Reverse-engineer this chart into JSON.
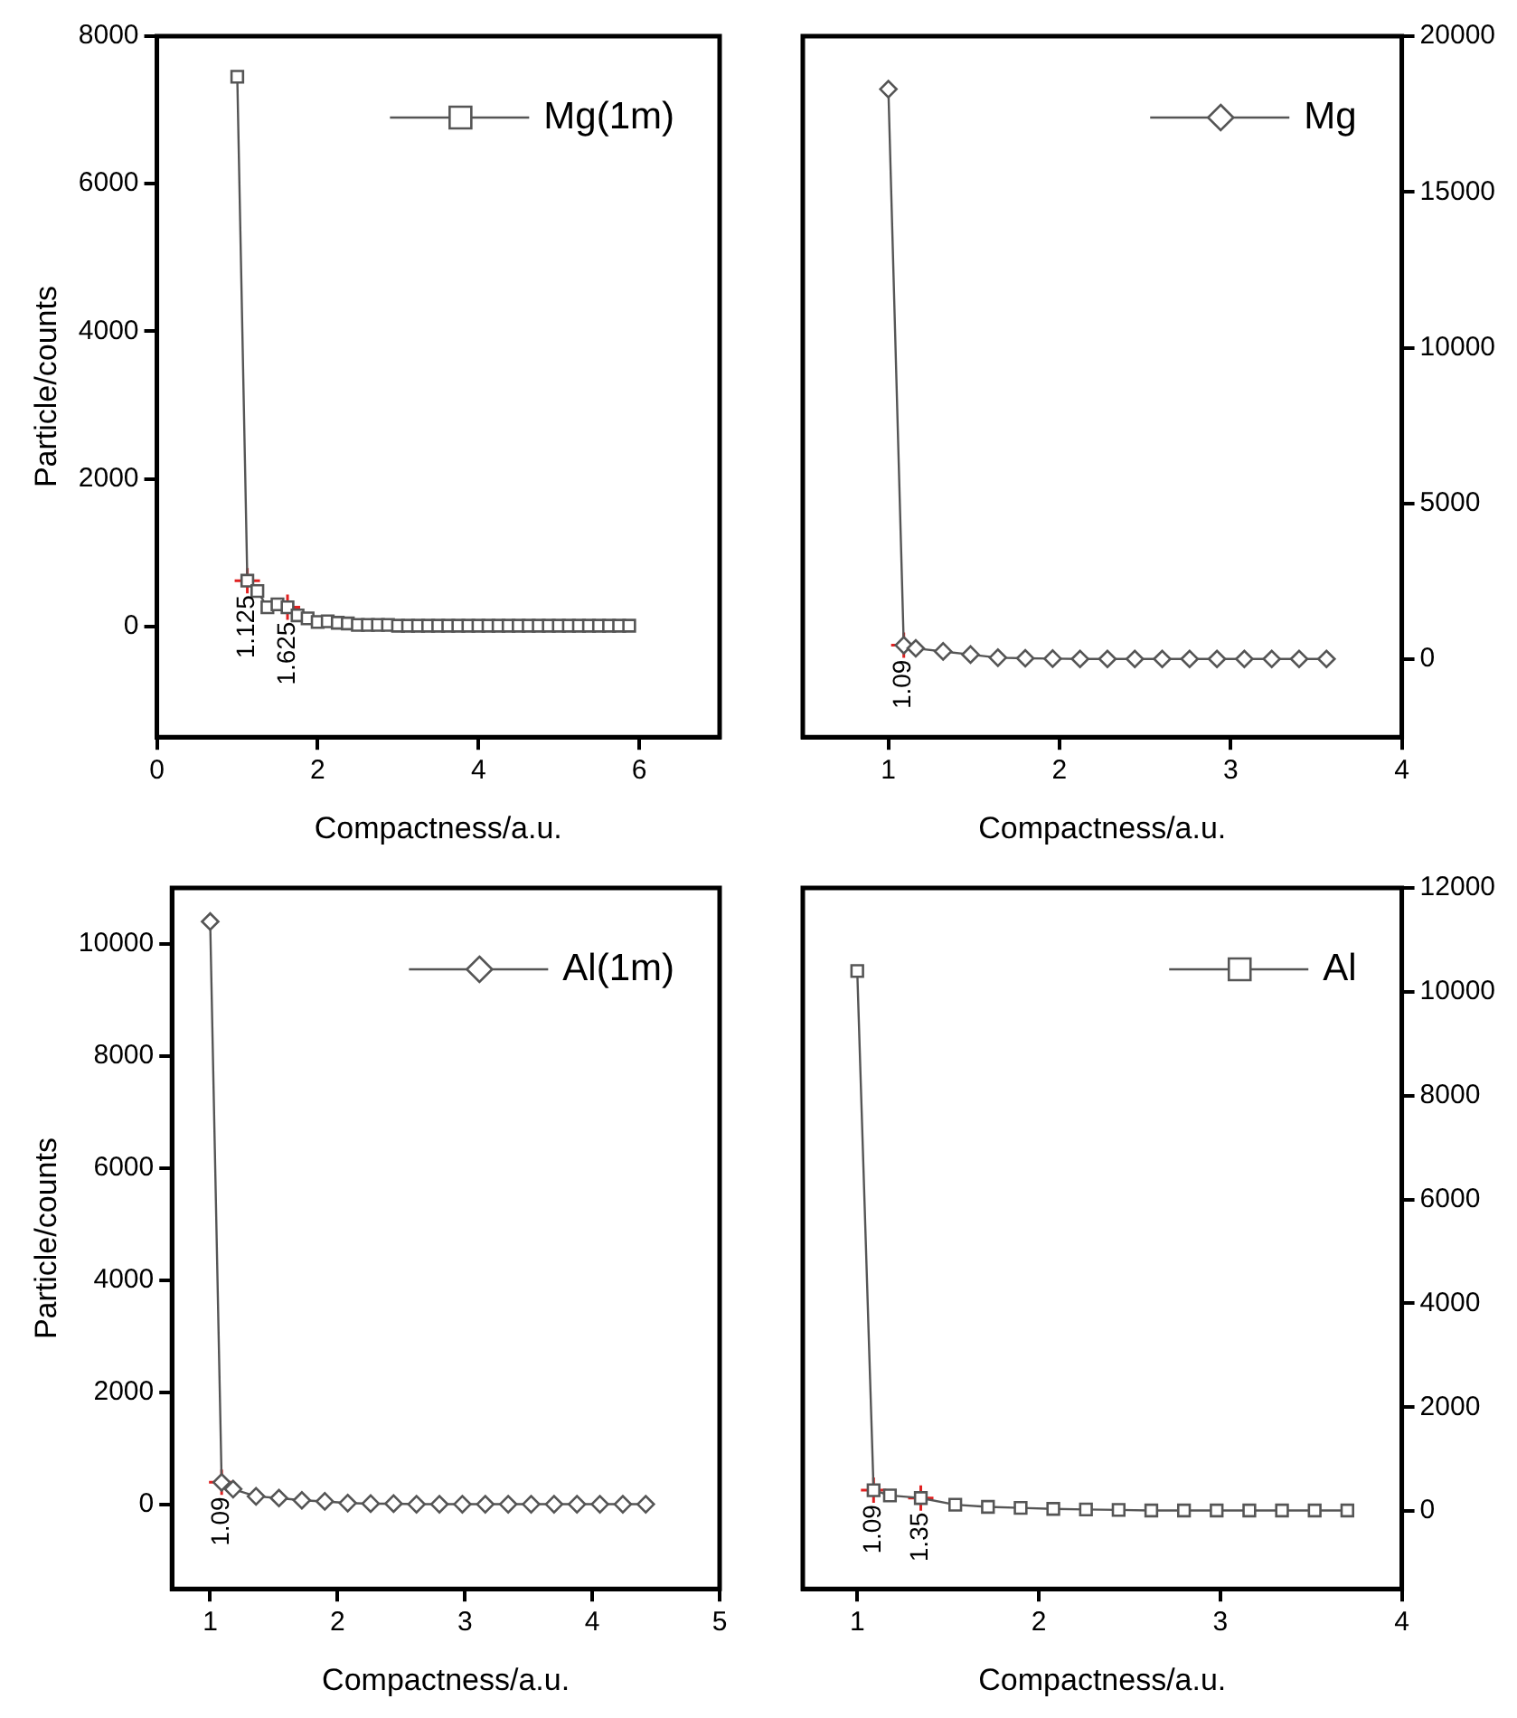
{
  "chart_data": [
    {
      "type": "line",
      "xlabel": "Compactness/a.u.",
      "ylabel": "Particle/counts",
      "xlim": [
        0,
        7
      ],
      "xticks": [
        0,
        2,
        4,
        6
      ],
      "ylim": [
        -1500,
        8000
      ],
      "yticks": [
        0,
        2000,
        4000,
        6000,
        8000
      ],
      "legend": "top right",
      "marker": "square",
      "grid": false,
      "series": [
        {
          "name": "Mg(1m)",
          "color": "#555555",
          "x": [
            1,
            1.125,
            1.25,
            1.375,
            1.5,
            1.625,
            1.75,
            1.875,
            2,
            2.125,
            2.25,
            2.375,
            2.5,
            2.625,
            2.75,
            2.875,
            3,
            3.125,
            3.25,
            3.375,
            3.5,
            3.625,
            3.75,
            3.875,
            4,
            4.125,
            4.25,
            4.375,
            4.5,
            4.625,
            4.75,
            4.875,
            5,
            5.125,
            5.25,
            5.375,
            5.5,
            5.625,
            5.75,
            5.875
          ],
          "values": [
            7450,
            620,
            480,
            260,
            300,
            260,
            150,
            110,
            60,
            70,
            50,
            40,
            20,
            20,
            20,
            20,
            10,
            10,
            10,
            10,
            10,
            10,
            10,
            10,
            10,
            10,
            10,
            10,
            10,
            10,
            10,
            10,
            10,
            10,
            10,
            10,
            10,
            10,
            10,
            10
          ]
        }
      ],
      "annotations": [
        {
          "text": "1.125",
          "x": 1.125,
          "y": 620
        },
        {
          "text": "1.625",
          "x": 1.625,
          "y": 260
        }
      ]
    },
    {
      "type": "line",
      "xlabel": "Compactness/a.u.",
      "xlim": [
        0.5,
        4
      ],
      "xticks": [
        1,
        2,
        3,
        4
      ],
      "ylim": [
        -2500,
        20000
      ],
      "yticks": [
        0,
        5000,
        10000,
        15000,
        20000
      ],
      "legend": "top right",
      "marker": "diamond",
      "grid": false,
      "series": [
        {
          "name": "Mg",
          "color": "#555555",
          "x": [
            1,
            1.09,
            1.16,
            1.32,
            1.48,
            1.64,
            1.8,
            1.96,
            2.12,
            2.28,
            2.44,
            2.6,
            2.76,
            2.92,
            3.08,
            3.24,
            3.4,
            3.56
          ],
          "values": [
            18300,
            450,
            350,
            250,
            150,
            50,
            30,
            20,
            10,
            10,
            10,
            10,
            10,
            10,
            10,
            10,
            10,
            10
          ]
        }
      ],
      "annotations": [
        {
          "text": "1.09",
          "x": 1.09,
          "y": 450
        }
      ]
    },
    {
      "type": "line",
      "xlabel": "Compactness/a.u.",
      "ylabel": "Particle/counts",
      "xlim": [
        0.7,
        5
      ],
      "xticks": [
        1,
        2,
        3,
        4,
        5
      ],
      "ylim": [
        -1500,
        11000
      ],
      "yticks": [
        0,
        2000,
        4000,
        6000,
        8000,
        10000
      ],
      "legend": "top right",
      "marker": "diamond",
      "grid": false,
      "series": [
        {
          "name": "Al(1m)",
          "color": "#555555",
          "x": [
            1,
            1.09,
            1.18,
            1.36,
            1.54,
            1.72,
            1.9,
            2.08,
            2.26,
            2.44,
            2.62,
            2.8,
            2.98,
            3.16,
            3.34,
            3.52,
            3.7,
            3.88,
            4.06,
            4.24,
            4.42
          ],
          "values": [
            10400,
            400,
            280,
            150,
            120,
            80,
            60,
            30,
            20,
            20,
            10,
            10,
            10,
            10,
            10,
            10,
            10,
            10,
            10,
            10,
            10
          ]
        }
      ],
      "annotations": [
        {
          "text": "1.09",
          "x": 1.09,
          "y": 400
        }
      ]
    },
    {
      "type": "line",
      "xlabel": "Compactness/a.u.",
      "xlim": [
        0.7,
        4
      ],
      "xticks": [
        1,
        2,
        3,
        4
      ],
      "ylim": [
        -1500,
        12000
      ],
      "yticks": [
        0,
        2000,
        4000,
        6000,
        8000,
        10000,
        12000
      ],
      "legend": "top right",
      "marker": "square",
      "grid": false,
      "series": [
        {
          "name": "Al",
          "color": "#555555",
          "x": [
            1,
            1.09,
            1.18,
            1.35,
            1.54,
            1.72,
            1.9,
            2.08,
            2.26,
            2.44,
            2.62,
            2.8,
            2.98,
            3.16,
            3.34,
            3.52,
            3.7
          ],
          "values": [
            10400,
            400,
            300,
            250,
            120,
            80,
            60,
            40,
            30,
            20,
            10,
            10,
            10,
            10,
            10,
            10,
            10
          ]
        }
      ],
      "annotations": [
        {
          "text": "1.09",
          "x": 1.09,
          "y": 400
        },
        {
          "text": "1.35",
          "x": 1.35,
          "y": 250
        }
      ]
    }
  ]
}
